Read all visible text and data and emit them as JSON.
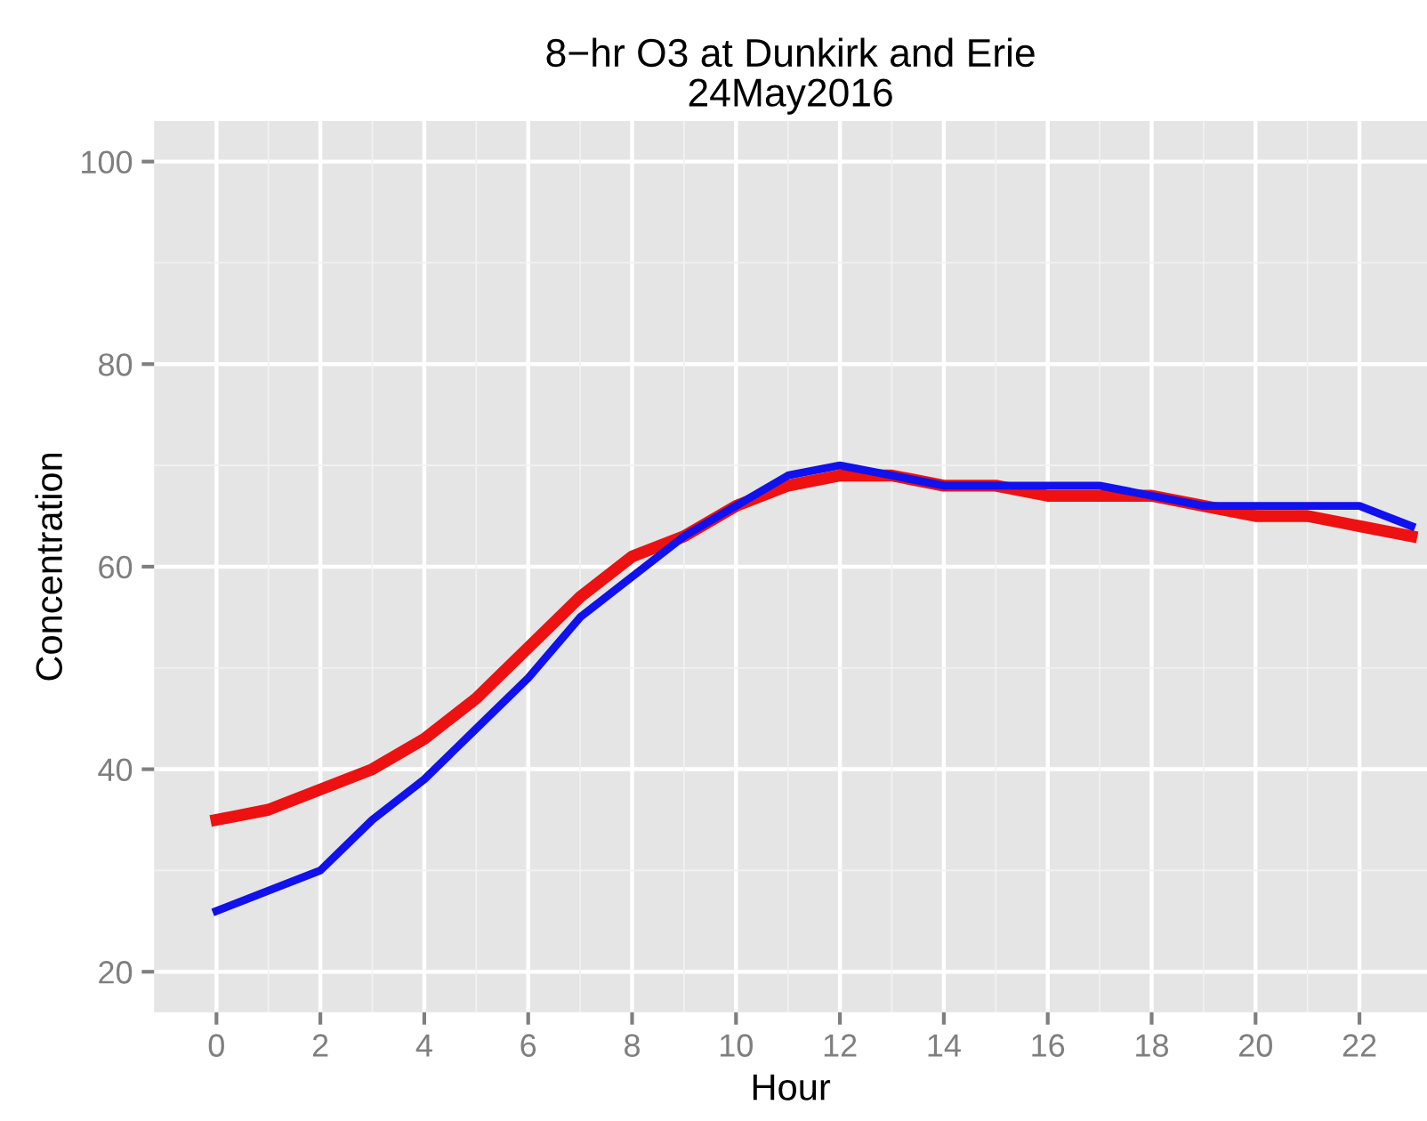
{
  "chart_data": {
    "type": "line",
    "title": "8−hr O3 at Dunkirk and Erie\n24May2016",
    "xlabel": "Hour",
    "ylabel": "Concentration",
    "x": [
      0,
      1,
      2,
      3,
      4,
      5,
      6,
      7,
      8,
      9,
      10,
      11,
      12,
      13,
      14,
      15,
      16,
      17,
      18,
      19,
      20,
      21,
      22,
      23
    ],
    "series": [
      {
        "color": "#ee1111",
        "values": [
          35,
          36,
          38,
          40,
          43,
          47,
          52,
          57,
          61,
          63,
          66,
          68,
          69,
          69,
          68,
          68,
          67,
          67,
          67,
          66,
          65,
          65,
          64,
          63
        ]
      },
      {
        "color": "#1111ee",
        "values": [
          26,
          28,
          30,
          35,
          39,
          44,
          49,
          55,
          59,
          63,
          66,
          69,
          70,
          69,
          68,
          68,
          68,
          68,
          67,
          66,
          66,
          66,
          66,
          64
        ]
      }
    ],
    "xlim": [
      -1.2,
      23.3
    ],
    "ylim": [
      16,
      104
    ],
    "xticks": [
      0,
      2,
      4,
      6,
      8,
      10,
      12,
      14,
      16,
      18,
      20,
      22
    ],
    "yticks": [
      20,
      40,
      60,
      80,
      100
    ],
    "grid": true,
    "legend": false,
    "marker": "none",
    "line_style": "solid"
  }
}
